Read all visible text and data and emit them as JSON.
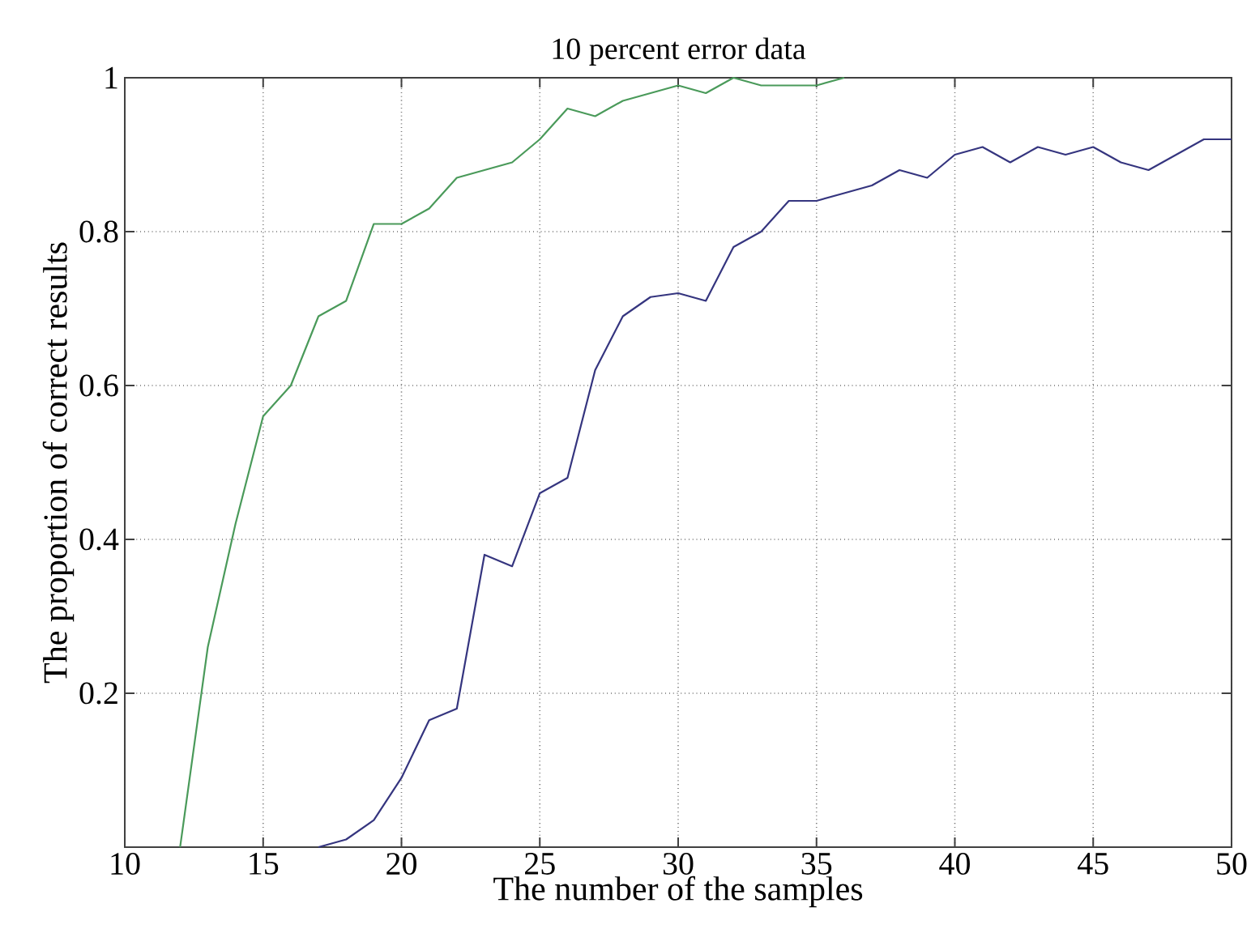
{
  "chart_data": {
    "type": "line",
    "title": "10 percent error data",
    "xlabel": "The number of the samples",
    "ylabel": "The proportion of correct results",
    "xlim": [
      10,
      50
    ],
    "ylim": [
      0,
      1
    ],
    "xticks": [
      10,
      15,
      20,
      25,
      30,
      35,
      40,
      45,
      50
    ],
    "yticks": [
      0.2,
      0.4,
      0.6,
      0.8,
      1
    ],
    "grid": true,
    "line_style": "solid",
    "series": [
      {
        "color": "#4a9a5a",
        "x": [
          12,
          13,
          14,
          15,
          16,
          17,
          18,
          19,
          20,
          21,
          22,
          23,
          24,
          25,
          26,
          27,
          28,
          29,
          30,
          31,
          32,
          33,
          34,
          35,
          36
        ],
        "values": [
          0,
          0.26,
          0.42,
          0.56,
          0.6,
          0.69,
          0.71,
          0.81,
          0.81,
          0.83,
          0.87,
          0.88,
          0.89,
          0.92,
          0.96,
          0.95,
          0.97,
          0.98,
          0.99,
          0.98,
          1,
          0.99,
          0.99,
          0.99,
          1
        ]
      },
      {
        "color": "#35357f",
        "x": [
          17,
          18,
          19,
          20,
          21,
          22,
          23,
          24,
          25,
          26,
          27,
          28,
          29,
          30,
          31,
          32,
          33,
          34,
          35,
          36,
          37,
          38,
          39,
          40,
          41,
          42,
          43,
          44,
          45,
          46,
          47,
          48,
          49,
          50
        ],
        "values": [
          0,
          0.01,
          0.035,
          0.09,
          0.165,
          0.18,
          0.38,
          0.365,
          0.46,
          0.48,
          0.62,
          0.69,
          0.715,
          0.72,
          0.71,
          0.78,
          0.8,
          0.84,
          0.84,
          0.85,
          0.86,
          0.88,
          0.87,
          0.9,
          0.91,
          0.89,
          0.91,
          0.9,
          0.91,
          0.89,
          0.88,
          0.9,
          0.92,
          0.92
        ]
      }
    ]
  }
}
